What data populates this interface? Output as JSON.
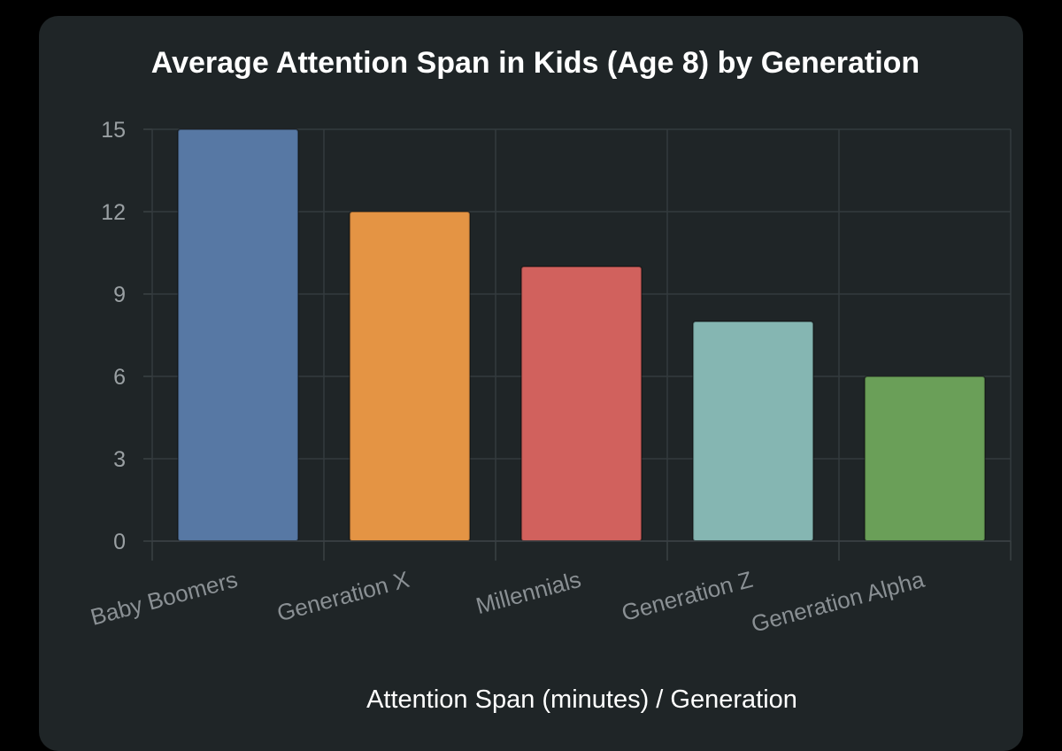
{
  "chart_data": {
    "type": "bar",
    "title": "Average Attention Span in Kids (Age 8) by Generation",
    "xlabel": "Attention Span (minutes) / Generation",
    "ylabel": "",
    "categories": [
      "Baby Boomers",
      "Generation X",
      "Millennials",
      "Generation Z",
      "Generation Alpha"
    ],
    "values": [
      15,
      12,
      10,
      8,
      6
    ],
    "colors": [
      "#5778a4",
      "#e49444",
      "#d1615d",
      "#85b6b2",
      "#6a9f58"
    ],
    "ylim": [
      0,
      15
    ],
    "yticks": [
      "0",
      "3",
      "6",
      "9",
      "12",
      "15"
    ],
    "grid": true,
    "legend": "none"
  }
}
